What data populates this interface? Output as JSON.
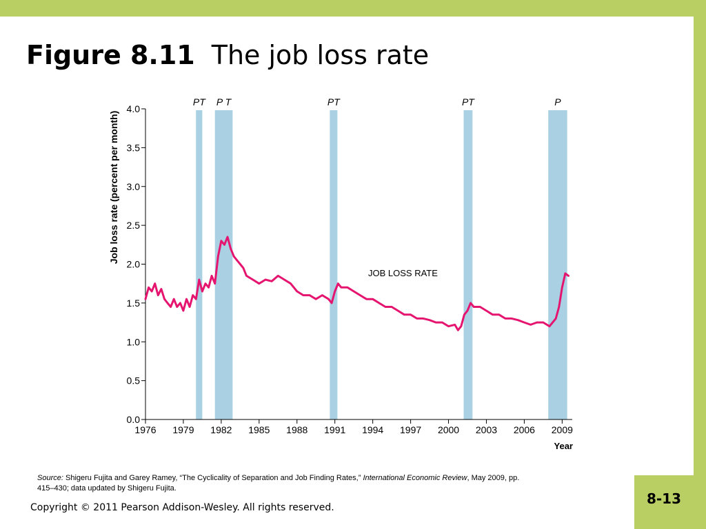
{
  "slide": {
    "title_bold": "Figure 8.11",
    "title_rest": "The job loss rate",
    "page_number": "8-13",
    "copyright": "Copyright © 2011 Pearson Addison-Wesley. All rights reserved.",
    "source_label": "Source:",
    "source_text_1": "Shigeru Fujita and Garey Ramey, “The Cyclicality of Separation and Job Finding Rates,”",
    "source_journal": "International Economic Review",
    "source_text_2": ", May 2009, pp. 415–430; data updated by Shigeru Fujita.",
    "colors": {
      "accent_bar": "#b9cf63",
      "series": "#e5156f",
      "recession_band": "#a9d1e3"
    }
  },
  "chart_data": {
    "type": "line",
    "title": "",
    "xlabel": "Year",
    "ylabel": "Job loss rate (percent per month)",
    "xlim": [
      1976,
      2009.8
    ],
    "ylim": [
      0,
      4.0
    ],
    "x_ticks": [
      "1976",
      "1979",
      "1982",
      "1985",
      "1988",
      "1991",
      "1994",
      "1997",
      "2000",
      "2003",
      "2006",
      "2009"
    ],
    "y_ticks": [
      "0.0",
      "0.5",
      "1.0",
      "1.5",
      "2.0",
      "2.5",
      "3.0",
      "3.5",
      "4.0"
    ],
    "grid": false,
    "series_label": "JOB LOSS RATE",
    "bands": [
      {
        "start": 1980.0,
        "end": 1980.5,
        "label": "PT"
      },
      {
        "start": 1981.5,
        "end": 1982.9,
        "label": "P T"
      },
      {
        "start": 1990.6,
        "end": 1991.2,
        "label": "PT"
      },
      {
        "start": 2001.2,
        "end": 2001.9,
        "label": "PT"
      },
      {
        "start": 2007.9,
        "end": 2009.4,
        "label": "P"
      }
    ],
    "series": [
      {
        "x": [
          1976.0,
          1976.25,
          1976.5,
          1976.75,
          1977.0,
          1977.25,
          1977.5,
          1977.75,
          1978.0,
          1978.25,
          1978.5,
          1978.75,
          1979.0,
          1979.25,
          1979.5,
          1979.75,
          1980.0,
          1980.25,
          1980.5,
          1980.75,
          1981.0,
          1981.25,
          1981.5,
          1981.75,
          1982.0,
          1982.25,
          1982.5,
          1982.75,
          1983.0,
          1983.25,
          1983.5,
          1983.75,
          1984.0,
          1984.5,
          1985.0,
          1985.5,
          1986.0,
          1986.5,
          1987.0,
          1987.5,
          1988.0,
          1988.5,
          1989.0,
          1989.5,
          1990.0,
          1990.5,
          1990.75,
          1991.0,
          1991.25,
          1991.5,
          1992.0,
          1992.5,
          1993.0,
          1993.5,
          1994.0,
          1994.5,
          1995.0,
          1995.5,
          1996.0,
          1996.5,
          1997.0,
          1997.5,
          1998.0,
          1998.5,
          1999.0,
          1999.5,
          2000.0,
          2000.5,
          2000.75,
          2001.0,
          2001.25,
          2001.5,
          2001.75,
          2002.0,
          2002.5,
          2003.0,
          2003.5,
          2004.0,
          2004.5,
          2005.0,
          2005.5,
          2006.0,
          2006.5,
          2007.0,
          2007.5,
          2008.0,
          2008.25,
          2008.5,
          2008.75,
          2009.0,
          2009.25,
          2009.5
        ],
        "y": [
          1.55,
          1.7,
          1.65,
          1.75,
          1.6,
          1.68,
          1.55,
          1.5,
          1.45,
          1.55,
          1.45,
          1.5,
          1.4,
          1.55,
          1.45,
          1.6,
          1.55,
          1.8,
          1.65,
          1.75,
          1.7,
          1.85,
          1.75,
          2.1,
          2.3,
          2.25,
          2.35,
          2.2,
          2.1,
          2.05,
          2.0,
          1.95,
          1.85,
          1.8,
          1.75,
          1.8,
          1.78,
          1.85,
          1.8,
          1.75,
          1.65,
          1.6,
          1.6,
          1.55,
          1.6,
          1.55,
          1.5,
          1.65,
          1.75,
          1.7,
          1.7,
          1.65,
          1.6,
          1.55,
          1.55,
          1.5,
          1.45,
          1.45,
          1.4,
          1.35,
          1.35,
          1.3,
          1.3,
          1.28,
          1.25,
          1.25,
          1.2,
          1.22,
          1.15,
          1.2,
          1.35,
          1.4,
          1.5,
          1.45,
          1.45,
          1.4,
          1.35,
          1.35,
          1.3,
          1.3,
          1.28,
          1.25,
          1.22,
          1.25,
          1.25,
          1.2,
          1.25,
          1.3,
          1.45,
          1.7,
          1.88,
          1.85
        ]
      }
    ]
  }
}
